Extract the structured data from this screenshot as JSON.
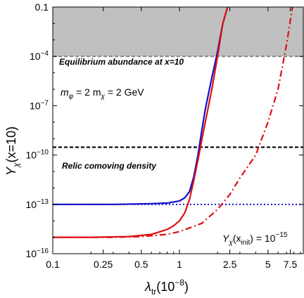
{
  "chart_data": {
    "type": "line",
    "xscale": "log",
    "yscale": "log",
    "xlim": [
      0.1,
      9.5
    ],
    "ylim": [
      1e-16,
      0.1
    ],
    "xlabel": {
      "main": "λ",
      "sub": "tr",
      "rest": "(10",
      "sup": "−8",
      "close": ")"
    },
    "ylabel": {
      "main": "Y",
      "sub": "χ",
      "rest": "(x=10)"
    },
    "x_ticks": [
      {
        "value": 0.1,
        "label": "0.1"
      },
      {
        "value": 0.25,
        "label": "0.25"
      },
      {
        "value": 0.5,
        "label": "0.5"
      },
      {
        "value": 1,
        "label": "1"
      },
      {
        "value": 2.5,
        "label": "2.5"
      },
      {
        "value": 5,
        "label": "5"
      },
      {
        "value": 7.5,
        "label": "7.5"
      }
    ],
    "y_ticks": [
      {
        "value": 0.1,
        "label": "0.1",
        "base": "",
        "exp": ""
      },
      {
        "value": 0.0001,
        "label": "",
        "base": "10",
        "exp": "−4"
      },
      {
        "value": 1e-07,
        "label": "",
        "base": "10",
        "exp": "−7"
      },
      {
        "value": 1e-10,
        "label": "",
        "base": "10",
        "exp": "−10"
      },
      {
        "value": 1e-13,
        "label": "",
        "base": "10",
        "exp": "−13"
      },
      {
        "value": 1e-16,
        "label": "",
        "base": "10",
        "exp": "−16"
      }
    ],
    "shaded_region": {
      "y_from": 0.0001,
      "y_to": 0.1,
      "color": "#c0c0c0"
    },
    "reference_lines": [
      {
        "y": 0.0001,
        "style": "dashed",
        "color": "#888888"
      },
      {
        "y": 3e-10,
        "style": "dashed",
        "color": "#000000"
      },
      {
        "y": 1e-13,
        "style": "dotted",
        "color": "#0000dd"
      }
    ],
    "series": [
      {
        "color": "#1010cc",
        "style": "solid",
        "points": [
          [
            0.1,
            1e-13
          ],
          [
            0.3,
            1e-13
          ],
          [
            0.6,
            1.1e-13
          ],
          [
            0.8,
            1.2e-13
          ],
          [
            1.0,
            1.6e-13
          ],
          [
            1.1,
            2.5e-13
          ],
          [
            1.2,
            6e-13
          ],
          [
            1.3,
            5e-12
          ],
          [
            1.4,
            1e-10
          ],
          [
            1.5,
            3e-09
          ],
          [
            1.6,
            6e-08
          ],
          [
            1.8,
            5e-06
          ],
          [
            2.0,
            0.0002
          ],
          [
            2.2,
            0.01
          ],
          [
            2.4,
            0.1
          ]
        ]
      },
      {
        "color": "#dd1010",
        "style": "solid",
        "points": [
          [
            0.1,
            1e-15
          ],
          [
            0.2,
            1e-15
          ],
          [
            0.4,
            1.1e-15
          ],
          [
            0.6,
            1.5e-15
          ],
          [
            0.8,
            3e-15
          ],
          [
            0.9,
            5e-15
          ],
          [
            1.0,
            1e-14
          ],
          [
            1.1,
            3e-14
          ],
          [
            1.2,
            2e-13
          ],
          [
            1.3,
            3e-12
          ],
          [
            1.4,
            5e-11
          ],
          [
            1.6,
            1e-08
          ],
          [
            1.8,
            1e-06
          ],
          [
            2.0,
            0.0001
          ],
          [
            2.2,
            0.01
          ],
          [
            2.4,
            0.1
          ]
        ]
      },
      {
        "color": "#dd1010",
        "style": "dashdot",
        "points": [
          [
            0.1,
            1e-15
          ],
          [
            0.3,
            1e-15
          ],
          [
            0.5,
            1.1e-15
          ],
          [
            0.8,
            1.5e-15
          ],
          [
            1.0,
            2.2e-15
          ],
          [
            1.5,
            7e-15
          ],
          [
            2.0,
            5e-14
          ],
          [
            2.5,
            4e-13
          ],
          [
            3.0,
            4e-12
          ],
          [
            4.0,
            1e-10
          ],
          [
            5.0,
            1e-08
          ],
          [
            6.0,
            1e-06
          ],
          [
            7.0,
            0.0005
          ],
          [
            7.8,
            0.1
          ]
        ]
      }
    ],
    "annotations": [
      {
        "key": "equilibrium",
        "text": "Equilibrium abundance at x=10"
      },
      {
        "key": "relic",
        "text": "Relic comoving density"
      },
      {
        "key": "masses",
        "parts": [
          "m",
          "φ",
          " = 2 m",
          "χ",
          " = 2 GeV"
        ]
      },
      {
        "key": "yinit",
        "parts": [
          "Y",
          "χ",
          "(x",
          "init",
          ") = 10",
          "−15"
        ]
      }
    ]
  }
}
